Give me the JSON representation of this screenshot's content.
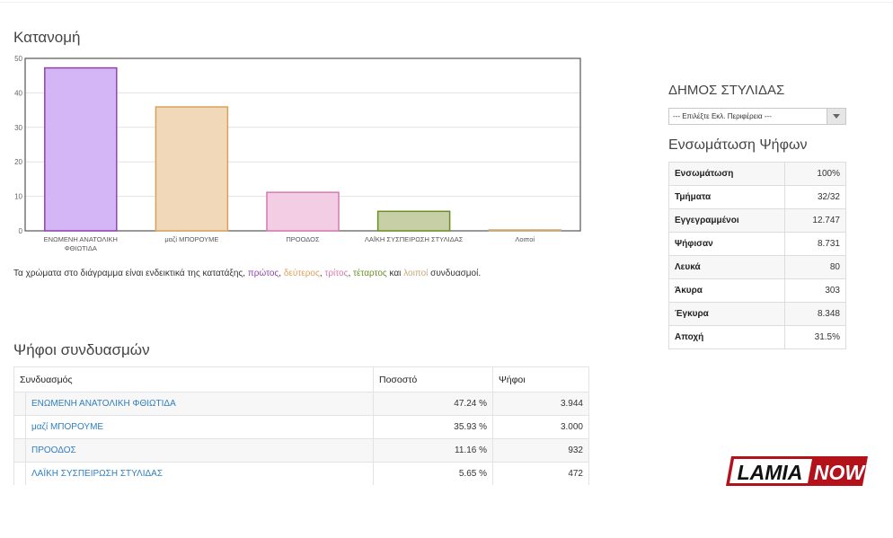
{
  "distribution": {
    "title": "Κατανομή",
    "note": {
      "prefix": "Τα χρώματα στο διάγραμμα είναι ενδεικτικά της κατατάξης",
      "first": "πρώτος",
      "second": "δεύτερος",
      "third": "τρίτος",
      "fourth": "τέταρτος",
      "and": "και",
      "others": "λοιποί",
      "suffix": "συνδυασμοί."
    }
  },
  "chart_data": {
    "type": "bar",
    "categories": [
      [
        "ΕΝΩΜΕΝΗ ΑΝΑΤΟΛΙΚΗ",
        "ΦΘΙΩΤΙΔΑ"
      ],
      [
        "μαζί ΜΠΟΡΟΥΜΕ"
      ],
      [
        "ΠΡΟΟΔΟΣ"
      ],
      [
        "ΛΑΪΚΗ ΣΥΣΠΕΙΡΩΣΗ ΣΤΥΛΙΔΑΣ"
      ],
      [
        "Λοιποί"
      ]
    ],
    "values": [
      47.24,
      35.93,
      11.16,
      5.65,
      0.0
    ],
    "ylim": [
      0,
      50
    ],
    "yticks": [
      0,
      10,
      20,
      30,
      40,
      50
    ],
    "grid": true,
    "colors": [
      {
        "fill": "#d4b5f5",
        "stroke": "#8e44ad"
      },
      {
        "fill": "#f0d8b8",
        "stroke": "#d9a25c"
      },
      {
        "fill": "#f2cde3",
        "stroke": "#d67ab1"
      },
      {
        "fill": "#c6cfa6",
        "stroke": "#6b8e23"
      },
      {
        "fill": "#efe4d3",
        "stroke": "#c9a77a"
      }
    ]
  },
  "votes": {
    "title": "Ψήφοι συνδυασμών",
    "headers": {
      "party": "Συνδυασμός",
      "percent": "Ποσοστό",
      "votes": "Ψήφοι"
    },
    "rows": [
      {
        "name": "ΕΝΩΜΕΝΗ ΑΝΑΤΟΛΙΚΗ ΦΘΙΩΤΙΔΑ",
        "percent": "47.24 %",
        "votes": "3.944"
      },
      {
        "name": "μαζί ΜΠΟΡΟΥΜΕ",
        "percent": "35.93 %",
        "votes": "3.000"
      },
      {
        "name": "ΠΡΟΟΔΟΣ",
        "percent": "11.16 %",
        "votes": "932"
      },
      {
        "name": "ΛΑΪΚΗ ΣΥΣΠΕΙΡΩΣΗ ΣΤΥΛΙΔΑΣ",
        "percent": "5.65 %",
        "votes": "472"
      }
    ]
  },
  "sidebar": {
    "municipality": "ΔΗΜΟΣ ΣΤΥΛΙΔΑΣ",
    "select_value": "--- Επιλέξτε Εκλ. Περιφέρεια ---",
    "incorporation_title": "Ενσωμάτωση Ψήφων",
    "stats": [
      {
        "label": "Ενσωμάτωση",
        "value": "100%"
      },
      {
        "label": "Τμήματα",
        "value": "32/32"
      },
      {
        "label": "Εγγεγραμμένοι",
        "value": "12.747"
      },
      {
        "label": "Ψήφισαν",
        "value": "8.731"
      },
      {
        "label": "Λευκά",
        "value": "80"
      },
      {
        "label": "Άκυρα",
        "value": "303"
      },
      {
        "label": "Έγκυρα",
        "value": "8.348"
      },
      {
        "label": "Αποχή",
        "value": "31.5%"
      }
    ]
  },
  "logo": {
    "part1": "LAMIA",
    "part2": "NOW"
  }
}
